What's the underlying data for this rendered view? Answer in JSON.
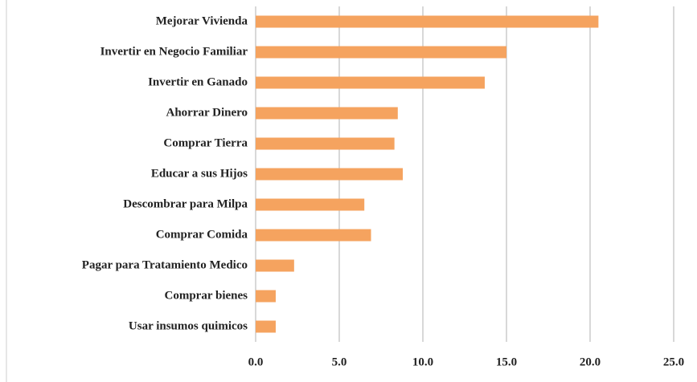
{
  "chart_data": {
    "type": "bar",
    "orientation": "horizontal",
    "categories": [
      "Mejorar Vivienda",
      "Invertir en Negocio Familiar",
      "Invertir en Ganado",
      "Ahorrar Dinero",
      "Comprar Tierra",
      "Educar a sus Hijos",
      "Descombrar para Milpa",
      "Comprar Comida",
      "Pagar para Tratamiento Medico",
      "Comprar bienes",
      "Usar insumos quimicos"
    ],
    "values": [
      20.5,
      15.0,
      13.7,
      8.5,
      8.3,
      8.8,
      6.5,
      6.9,
      2.3,
      1.2,
      1.2
    ],
    "color": "#f5a35f",
    "xlim": [
      0,
      25
    ],
    "xticks": [
      {
        "value": 0,
        "label": "0.0"
      },
      {
        "value": 5,
        "label": "5.0"
      },
      {
        "value": 10,
        "label": "10.0"
      },
      {
        "value": 15,
        "label": "15.0"
      },
      {
        "value": 20,
        "label": "20.0"
      },
      {
        "value": 25,
        "label": "25.0"
      }
    ],
    "grid": true
  }
}
